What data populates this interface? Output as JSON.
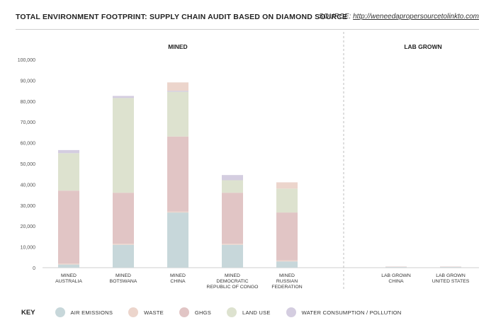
{
  "header": {
    "title": "TOTAL ENVIRONMENT FOOTPRINT: SUPPLY CHAIN AUDIT BASED ON DIAMOND SOURCE",
    "source_label": "SOURCE:",
    "source_url": "http://weneedapropersourcetolinkto.com"
  },
  "colors": {
    "air_emissions": "#c7d7da",
    "waste": "#ecd5cc",
    "ghgs": "#e1c5c5",
    "land_use": "#dde2cf",
    "water": "#d4cde0",
    "axis": "#cfcfcf"
  },
  "key": {
    "title": "KEY",
    "items": [
      {
        "label": "AIR EMISSIONS",
        "color": "#c7d7da"
      },
      {
        "label": "WASTE",
        "color": "#ecd5cc"
      },
      {
        "label": "GHGS",
        "color": "#e1c5c5"
      },
      {
        "label": "LAND USE",
        "color": "#dde2cf"
      },
      {
        "label": "WATER CONSUMPTION / POLLUTION",
        "color": "#d4cde0"
      }
    ]
  },
  "chart_data": {
    "type": "bar",
    "stacked": true,
    "groups": [
      {
        "label": "MINED",
        "categories": [
          0,
          1,
          2,
          3,
          4
        ]
      },
      {
        "label": "LAB GROWN",
        "categories": [
          5,
          6
        ]
      }
    ],
    "categories": [
      "MINED\nAUSTRALIA",
      "MINED\nBOTSWANA",
      "MINED\nCHINA",
      "MINED\nDEMOCRATIC\nREPUBLIC OF CONGO",
      "MINED\nRUSSIAN\nFEDERATION",
      "LAB GROWN\nCHINA",
      "LAB GROWN\nUNITED STATES"
    ],
    "series": [
      {
        "name": "AIR EMISSIONS",
        "color": "#c7d7da",
        "values": [
          1500,
          11000,
          26500,
          11000,
          3000,
          300,
          300
        ]
      },
      {
        "name": "WASTE",
        "color": "#ecd5cc",
        "values": [
          500,
          500,
          500,
          500,
          500,
          0,
          0
        ]
      },
      {
        "name": "GHGS",
        "color": "#e1c5c5",
        "values": [
          35000,
          24500,
          36000,
          24500,
          23000,
          200,
          200
        ]
      },
      {
        "name": "LAND USE",
        "color": "#dde2cf",
        "values": [
          18000,
          45500,
          21500,
          6000,
          11500,
          0,
          0
        ]
      },
      {
        "name": "WATER CONSUMPTION / POLLUTION",
        "color": "#d4cde0",
        "values": [
          1500,
          1000,
          500,
          2500,
          0,
          0,
          0
        ]
      },
      {
        "name": "WASTE",
        "color": "#ecd5cc",
        "values": [
          0,
          0,
          4000,
          0,
          3000,
          0,
          0
        ]
      }
    ],
    "y_ticks": [
      "0",
      "10,000",
      "20,000",
      "30,000",
      "40,000",
      "50,000",
      "60,000",
      "70,000",
      "80,000",
      "90,000",
      "100,000"
    ],
    "ylim": [
      0,
      100000
    ],
    "grid": false
  }
}
